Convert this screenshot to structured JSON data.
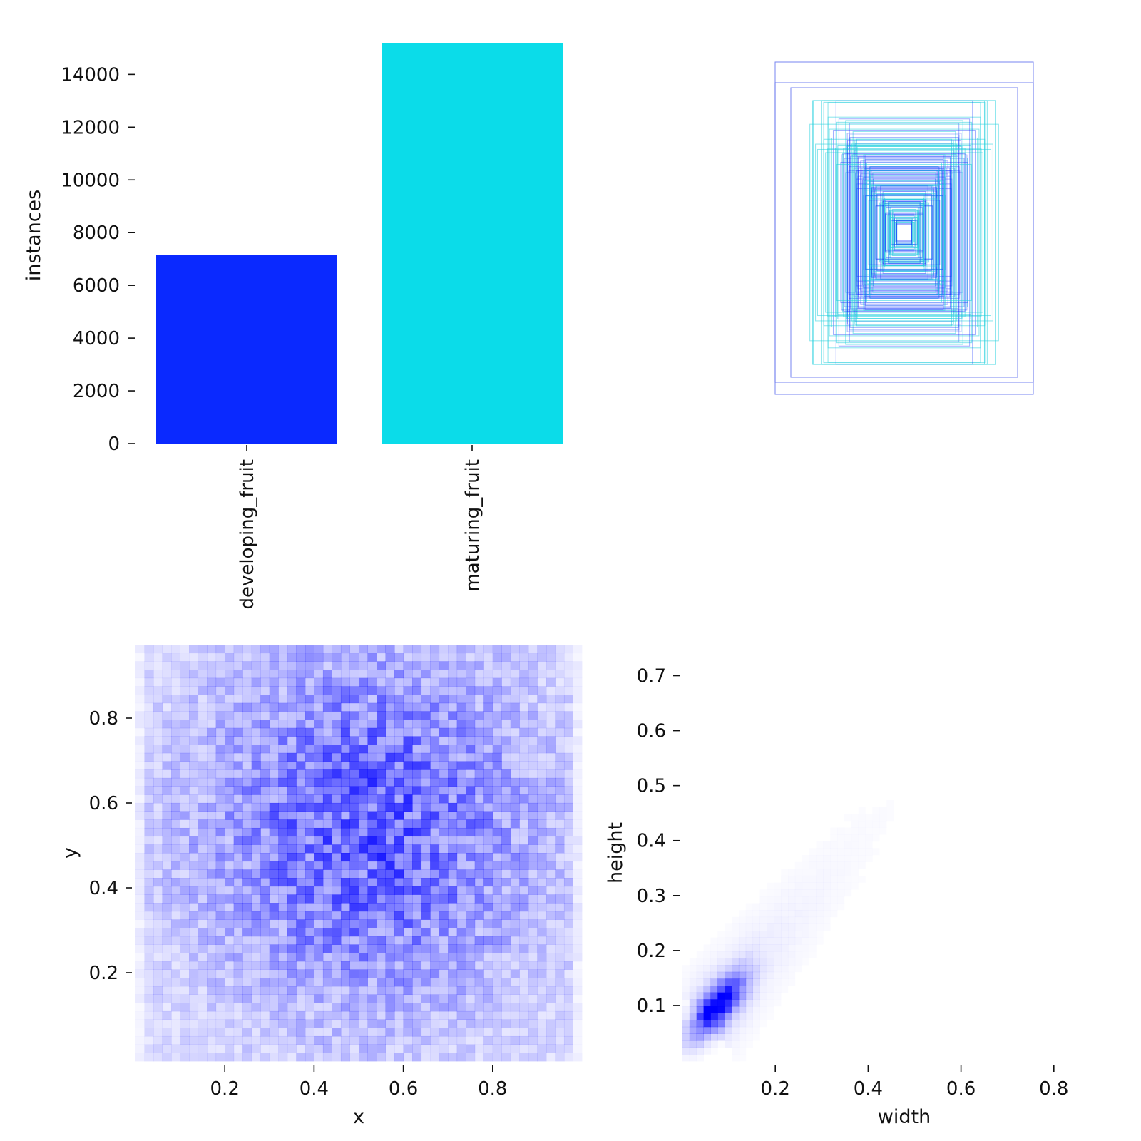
{
  "colors": {
    "developing": "#0a29ff",
    "maturing": "#0bdce9",
    "heat": "#0000ff",
    "box_dev": "#5566ee",
    "box_mat": "#22d0dd"
  },
  "chart_data": [
    {
      "type": "bar",
      "categories": [
        "developing_fruit",
        "maturing_fruit"
      ],
      "values": [
        7150,
        15200
      ],
      "title": "",
      "xlabel": "",
      "ylabel": "instances",
      "ylim": [
        0,
        15200
      ],
      "yticks": [
        0,
        2000,
        4000,
        6000,
        8000,
        10000,
        12000,
        14000
      ],
      "ytick_labels": [
        "0",
        "2000",
        "4000",
        "6000",
        "8000",
        "10000",
        "12000",
        "14000"
      ],
      "grid": false,
      "bar_colors": [
        "#0a29ff",
        "#0bdce9"
      ]
    },
    {
      "type": "other",
      "description_kind": "overlaid bounding boxes",
      "grid": false
    },
    {
      "type": "heatmap",
      "title": "",
      "xlabel": "x",
      "ylabel": "y",
      "xlim": [
        0,
        1
      ],
      "ylim": [
        0,
        1
      ],
      "xticks": [
        0.2,
        0.4,
        0.6,
        0.8
      ],
      "xtick_labels": [
        "0.2",
        "0.4",
        "0.6",
        "0.8"
      ],
      "yticks": [
        0.2,
        0.4,
        0.6,
        0.8
      ],
      "ytick_labels": [
        "0.2",
        "0.4",
        "0.6",
        "0.8"
      ],
      "density_peak": [
        0.5,
        0.55
      ],
      "grid": false
    },
    {
      "type": "heatmap",
      "title": "",
      "xlabel": "width",
      "ylabel": "height",
      "xlim": [
        0,
        1
      ],
      "ylim": [
        0,
        0.75
      ],
      "xticks": [
        0.2,
        0.4,
        0.6,
        0.8
      ],
      "xtick_labels": [
        "0.2",
        "0.4",
        "0.6",
        "0.8"
      ],
      "yticks": [
        0.1,
        0.2,
        0.3,
        0.4,
        0.5,
        0.6,
        0.7
      ],
      "ytick_labels": [
        "0.1",
        "0.2",
        "0.3",
        "0.4",
        "0.5",
        "0.6",
        "0.7"
      ],
      "density_peak": [
        0.08,
        0.1
      ],
      "grid": false
    }
  ]
}
